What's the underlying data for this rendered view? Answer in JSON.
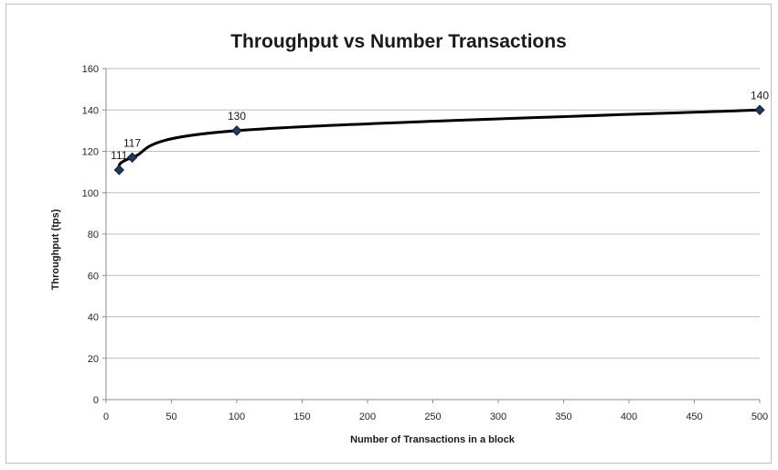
{
  "chart_data": {
    "type": "line",
    "title": "Throughput vs Number Transactions",
    "xlabel": "Number of Transactions  in a block",
    "ylabel": "Throughput (tps)",
    "xlim": [
      0,
      500
    ],
    "ylim": [
      0,
      160
    ],
    "xticks": [
      0,
      50,
      100,
      150,
      200,
      250,
      300,
      350,
      400,
      450,
      500
    ],
    "yticks": [
      0,
      20,
      40,
      60,
      80,
      100,
      120,
      140,
      160
    ],
    "grid": true,
    "legend": "none",
    "series": [
      {
        "x": [
          10,
          20,
          100,
          500
        ],
        "y": [
          111,
          117,
          130,
          140
        ],
        "labels": [
          "111",
          "117",
          "130",
          "140"
        ],
        "color": "#000000",
        "marker_color": "#1f3a5f",
        "smooth": true
      }
    ]
  }
}
